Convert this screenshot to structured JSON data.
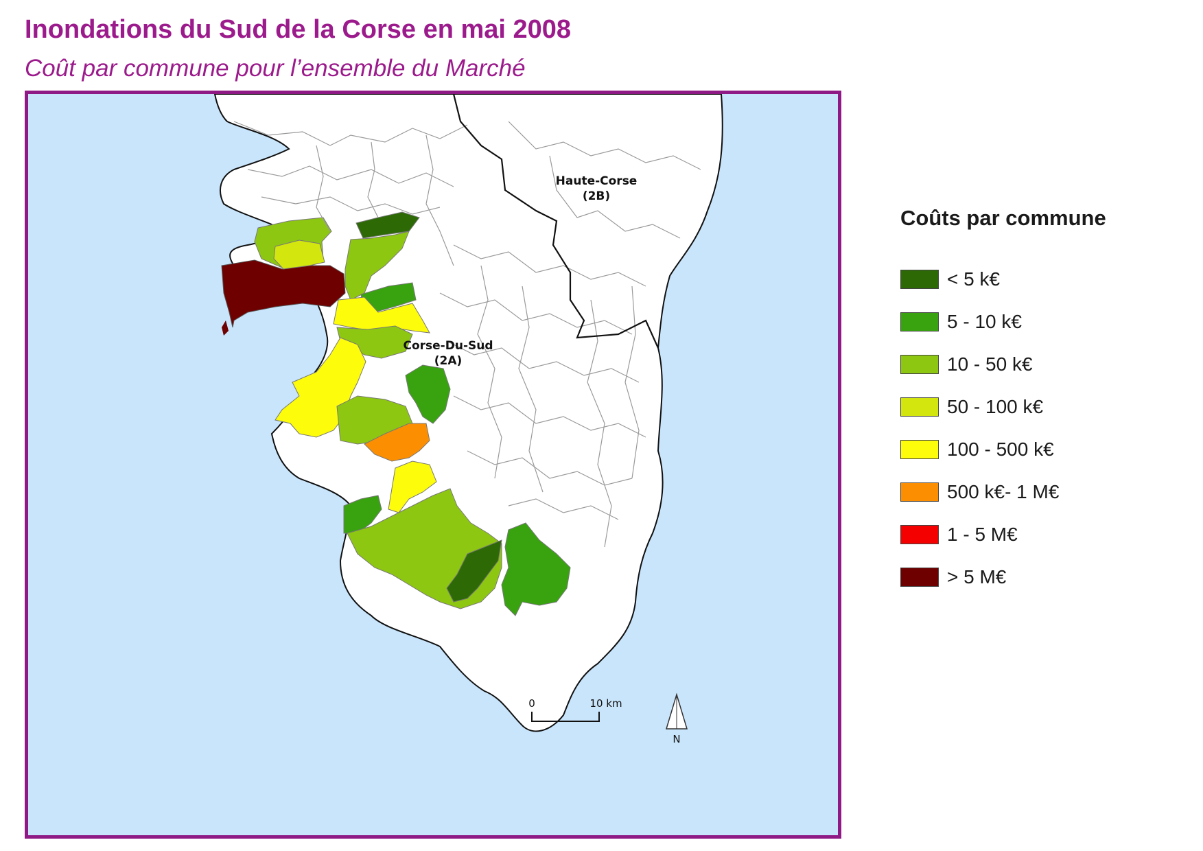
{
  "title": "Inondations du Sud de la Corse en mai 2008",
  "subtitle": "Coût par commune pour l’ensemble du Marché",
  "map": {
    "regions": [
      {
        "name": "Haute-Corse",
        "code": "(2B)"
      },
      {
        "name": "Corse-Du-Sud",
        "code": "(2A)"
      }
    ],
    "scale": {
      "zero": "0",
      "end": "10 km"
    },
    "north": "N",
    "colors": {
      "sea": "#c9e5fb",
      "land": "#ffffff",
      "frame": "#8f1a86"
    }
  },
  "legend": {
    "title": "Coûts par commune",
    "items": [
      {
        "label": "< 5 k€",
        "color": "#2d6a06"
      },
      {
        "label": "5 - 10 k€",
        "color": "#38a30f"
      },
      {
        "label": "10 - 50 k€",
        "color": "#8ec711"
      },
      {
        "label": "50 - 100 k€",
        "color": "#d3e60e"
      },
      {
        "label": "100 - 500 k€",
        "color": "#fdfc0b"
      },
      {
        "label": "500 k€- 1 M€",
        "color": "#fc8f01"
      },
      {
        "label": "1 - 5 M€",
        "color": "#f50000"
      },
      {
        "label": "> 5 M€",
        "color": "#6e0000"
      }
    ]
  }
}
